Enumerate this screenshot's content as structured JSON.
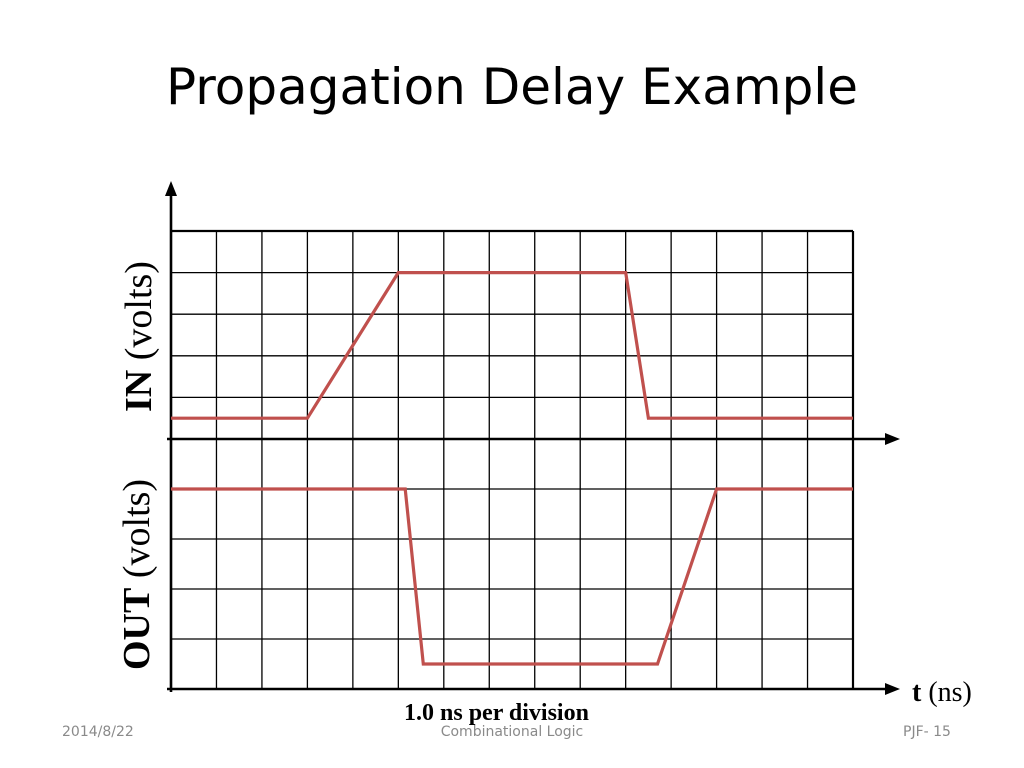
{
  "slide": {
    "title": "Propagation Delay Example",
    "footer_date": "2014/8/22",
    "footer_center": "Combinational Logic",
    "footer_page": "PJF- 15"
  },
  "axes": {
    "in_label_bold": "IN",
    "in_label_unit": "(volts)",
    "out_label_bold": "OUT",
    "out_label_unit": "(volts)",
    "t_label_bold": "t",
    "t_label_unit": "(ns)",
    "division_note": "1.0 ns per division"
  },
  "chart_data": {
    "type": "line",
    "x_divisions": 15,
    "y_divisions_per_panel": 5,
    "x_unit": "ns per division",
    "x_scale": 1.0,
    "grid": true,
    "colors": {
      "trace": "#c0504d",
      "grid": "#000000"
    },
    "series": [
      {
        "panel": "IN",
        "x": [
          0,
          3,
          5,
          10,
          10.5,
          15
        ],
        "y": [
          0.5,
          0.5,
          4,
          4,
          0.5,
          0.5
        ]
      },
      {
        "panel": "OUT",
        "x": [
          0,
          5.15,
          5.55,
          10.7,
          12,
          15
        ],
        "y": [
          4,
          4,
          0.5,
          0.5,
          4,
          4
        ]
      }
    ]
  }
}
